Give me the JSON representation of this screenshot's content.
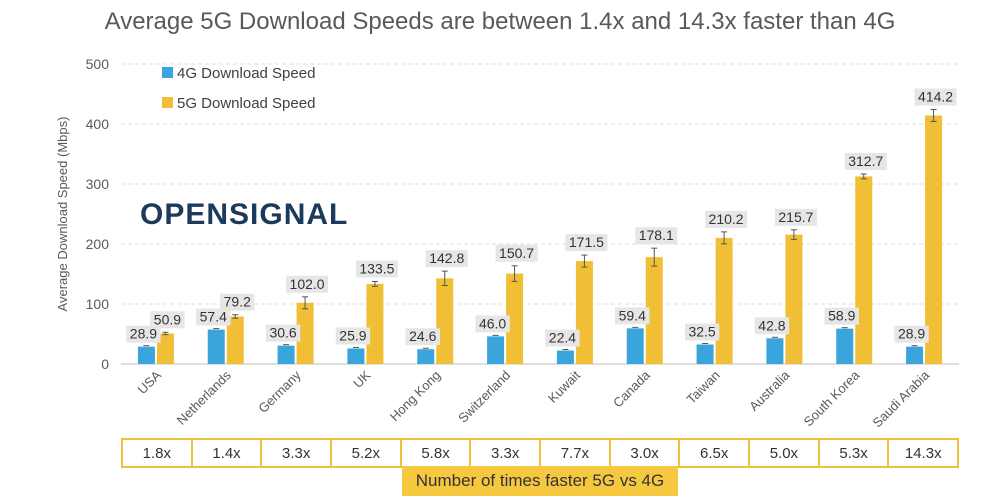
{
  "title": "Average 5G Download Speeds are between 1.4x and 14.3x faster than 4G",
  "logo": {
    "text": "OPENSIGNAL"
  },
  "colors": {
    "4g": "#3aa5dc",
    "5g": "#f0bf35",
    "grid": "#dedede",
    "axis": "#595959",
    "label_bg": "#e6e6e6"
  },
  "chart_data": {
    "type": "bar",
    "categories": [
      "USA",
      "Netherlands",
      "Germany",
      "UK",
      "Hong Kong",
      "Switzerland",
      "Kuwait",
      "Canada",
      "Taiwan",
      "Australia",
      "South Korea",
      "Saudi Arabia"
    ],
    "series": [
      {
        "name": "4G Download Speed",
        "color": "#3aa5dc",
        "values": [
          28.9,
          57.4,
          30.6,
          25.9,
          24.6,
          46.0,
          22.4,
          59.4,
          32.5,
          42.8,
          58.9,
          28.9
        ],
        "labels": [
          "28.9",
          "57.4",
          "30.6",
          "25.9",
          "24.6",
          "46.0",
          "22.4",
          "59.4",
          "32.5",
          "42.8",
          "58.9",
          "28.9"
        ]
      },
      {
        "name": "5G Download Speed",
        "color": "#f0bf35",
        "values": [
          50.9,
          79.2,
          102.0,
          133.5,
          142.8,
          150.7,
          171.5,
          178.1,
          210.2,
          215.7,
          312.7,
          414.2
        ],
        "labels": [
          "50.9",
          "79.2",
          "102.0",
          "133.5",
          "142.8",
          "150.7",
          "171.5",
          "178.1",
          "210.2",
          "215.7",
          "312.7",
          "414.2"
        ],
        "errors": [
          2,
          3,
          10,
          4,
          12,
          13,
          10,
          15,
          10,
          8,
          4,
          10
        ]
      }
    ],
    "ylabel": "Average Download Speed (Mbps)",
    "xlabel": "",
    "ylim": [
      0,
      500
    ],
    "yticks": [
      0,
      100,
      200,
      300,
      400,
      500
    ],
    "grid": true,
    "legend": "top-left"
  },
  "multiplier": {
    "caption": "Number of times faster 5G vs 4G",
    "values": [
      "1.8x",
      "1.4x",
      "3.3x",
      "5.2x",
      "5.8x",
      "3.3x",
      "7.7x",
      "3.0x",
      "6.5x",
      "5.0x",
      "5.3x",
      "14.3x"
    ]
  }
}
